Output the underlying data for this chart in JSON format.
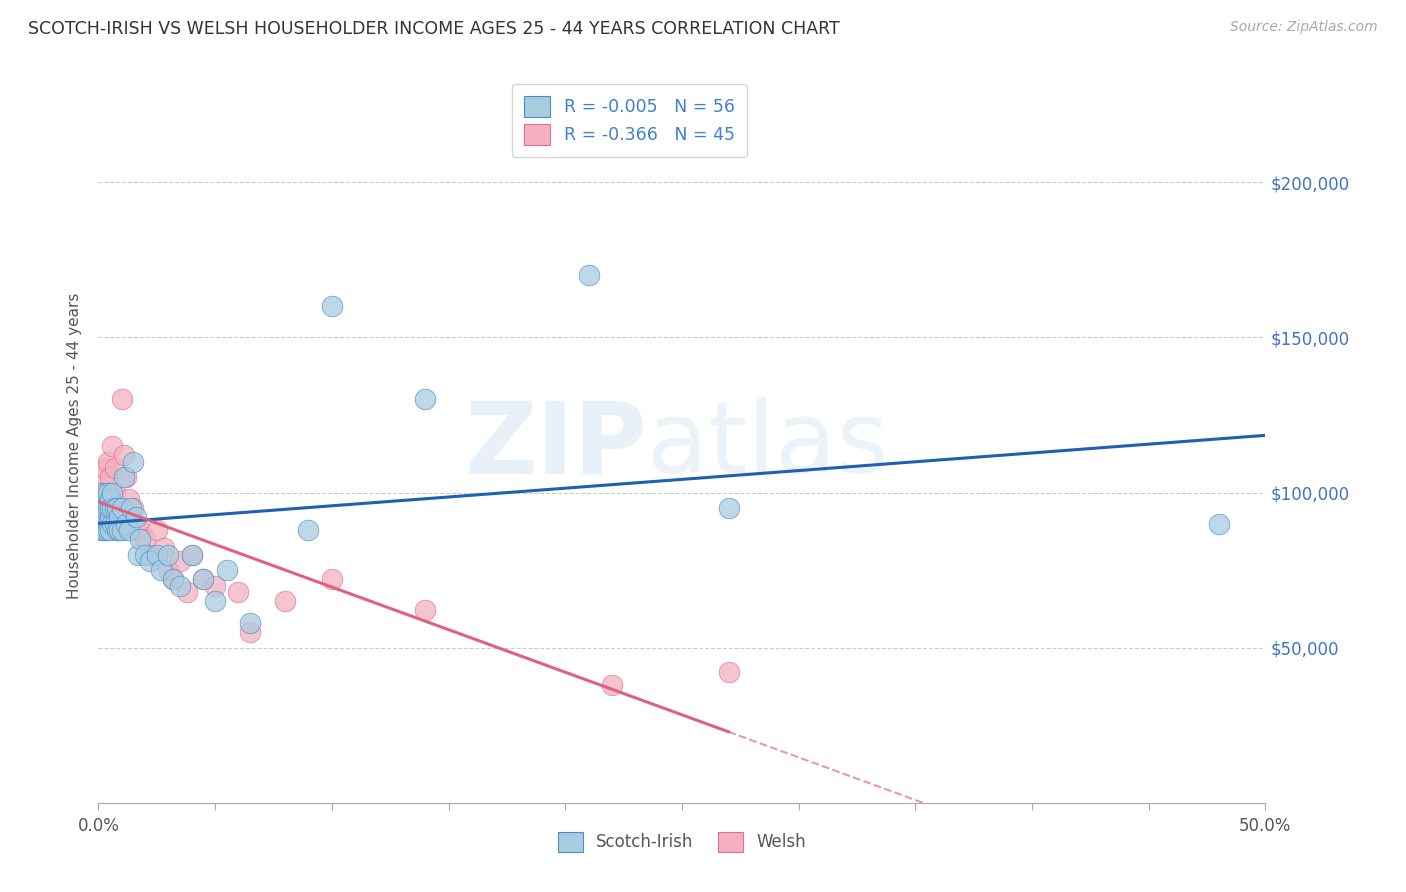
{
  "title": "SCOTCH-IRISH VS WELSH HOUSEHOLDER INCOME AGES 25 - 44 YEARS CORRELATION CHART",
  "source": "Source: ZipAtlas.com",
  "ylabel": "Householder Income Ages 25 - 44 years",
  "xlim": [
    0.0,
    0.5
  ],
  "ylim": [
    0,
    230000
  ],
  "xticks": [
    0.0,
    0.05,
    0.1,
    0.15,
    0.2,
    0.25,
    0.3,
    0.35,
    0.4,
    0.45,
    0.5
  ],
  "xticklabels_show": [
    "0.0%",
    "",
    "",
    "",
    "",
    "",
    "",
    "",
    "",
    "",
    "50.0%"
  ],
  "ytick_vals": [
    0,
    50000,
    100000,
    150000,
    200000
  ],
  "yticklabels_right": [
    "",
    "$50,000",
    "$100,000",
    "$150,000",
    "$200,000"
  ],
  "grid_color": "#cccccc",
  "background_color": "#ffffff",
  "watermark_zip": "ZIP",
  "watermark_atlas": "atlas",
  "scotch_irish_fill": "#a8cce0",
  "welsh_fill": "#f4b0c0",
  "scotch_irish_edge": "#4a90c8",
  "welsh_edge": "#e07090",
  "scotch_irish_line": "#2060b0",
  "welsh_line": "#e06080",
  "scotch_irish_R": -0.005,
  "scotch_irish_N": 56,
  "welsh_R": -0.366,
  "welsh_N": 45,
  "legend_label_color": "#333333",
  "legend_value_color": "#4080d0",
  "scotch_irish_x": [
    0.001,
    0.001,
    0.001,
    0.002,
    0.002,
    0.002,
    0.002,
    0.003,
    0.003,
    0.003,
    0.003,
    0.004,
    0.004,
    0.004,
    0.004,
    0.005,
    0.005,
    0.005,
    0.005,
    0.006,
    0.006,
    0.006,
    0.007,
    0.007,
    0.008,
    0.008,
    0.009,
    0.009,
    0.01,
    0.01,
    0.011,
    0.012,
    0.013,
    0.014,
    0.015,
    0.016,
    0.017,
    0.018,
    0.02,
    0.022,
    0.025,
    0.027,
    0.03,
    0.032,
    0.035,
    0.04,
    0.045,
    0.05,
    0.055,
    0.065,
    0.09,
    0.1,
    0.14,
    0.21,
    0.27,
    0.48
  ],
  "scotch_irish_y": [
    95000,
    88000,
    100000,
    92000,
    98000,
    88000,
    95000,
    100000,
    92000,
    88000,
    95000,
    90000,
    95000,
    100000,
    88000,
    92000,
    98000,
    88000,
    95000,
    90000,
    95000,
    100000,
    90000,
    95000,
    88000,
    95000,
    92000,
    88000,
    95000,
    88000,
    105000,
    90000,
    88000,
    95000,
    110000,
    92000,
    80000,
    85000,
    80000,
    78000,
    80000,
    75000,
    80000,
    72000,
    70000,
    80000,
    72000,
    65000,
    75000,
    58000,
    88000,
    160000,
    130000,
    170000,
    95000,
    90000
  ],
  "welsh_x": [
    0.001,
    0.001,
    0.002,
    0.002,
    0.003,
    0.003,
    0.003,
    0.004,
    0.004,
    0.005,
    0.005,
    0.005,
    0.006,
    0.006,
    0.007,
    0.007,
    0.008,
    0.008,
    0.009,
    0.01,
    0.011,
    0.012,
    0.013,
    0.014,
    0.015,
    0.016,
    0.018,
    0.02,
    0.022,
    0.025,
    0.028,
    0.03,
    0.032,
    0.035,
    0.038,
    0.04,
    0.045,
    0.05,
    0.06,
    0.065,
    0.08,
    0.1,
    0.14,
    0.22,
    0.27
  ],
  "welsh_y": [
    95000,
    100000,
    92000,
    105000,
    98000,
    108000,
    92000,
    100000,
    110000,
    95000,
    105000,
    92000,
    98000,
    115000,
    100000,
    108000,
    95000,
    90000,
    95000,
    130000,
    112000,
    105000,
    98000,
    92000,
    95000,
    88000,
    88000,
    85000,
    80000,
    88000,
    82000,
    75000,
    72000,
    78000,
    68000,
    80000,
    72000,
    70000,
    68000,
    55000,
    65000,
    72000,
    62000,
    38000,
    42000
  ]
}
